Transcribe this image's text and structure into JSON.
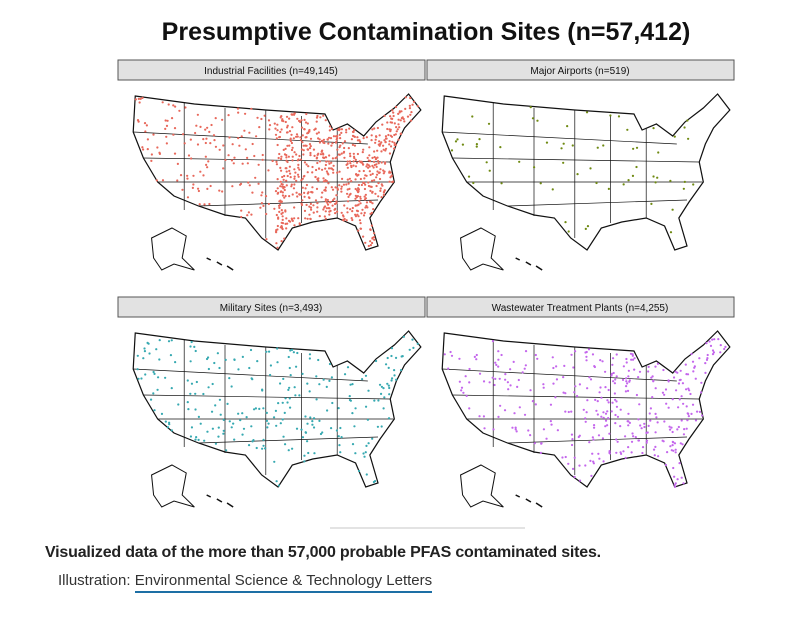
{
  "figure": {
    "title": "Presumptive Contamination Sites (n=57,412)",
    "panels": [
      {
        "label": "Industrial Facilities (n=49,145)",
        "color": "#e8685b"
      },
      {
        "label": "Major Airports (n=519)",
        "color": "#6f8a12"
      },
      {
        "label": "Military Sites (n=3,493)",
        "color": "#36a9b1"
      },
      {
        "label": "Wastewater Treatment Plants (n=4,255)",
        "color": "#c466ec"
      }
    ]
  },
  "caption": {
    "text": "Visualized data of the more than 57,000 probable PFAS contaminated sites.",
    "credit_prefix": "Illustration:",
    "credit_link": "Environmental Science & Technology Letters"
  }
}
